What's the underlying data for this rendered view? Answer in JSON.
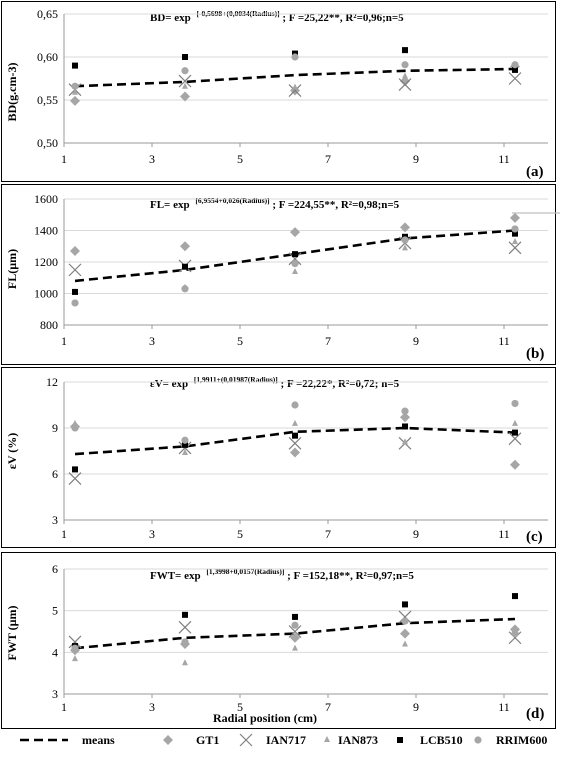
{
  "legend": {
    "means": "means",
    "gt1": "GT1",
    "ian717": "IAN717",
    "ian873": "IAN873",
    "lcb510": "LCB510",
    "rrim600": "RRIM600"
  },
  "x_axis_title": "Radial position (cm)",
  "colors": {
    "GT1": "#a6a6a6",
    "IAN717": "#7f7f7f",
    "IAN873": "#a6a6a6",
    "LCB510": "#000000",
    "RRIM600": "#a6a6a6"
  },
  "chart_data": [
    {
      "type": "scatter",
      "panel_label": "(a)",
      "ylabel": "BD(g.cm-3)",
      "equation": {
        "prefix": "BD= exp",
        "exponent": "[-0,5698+(0,0034(Radius)]",
        "suffix": "; F =25,22**, R²=0,96;n=5"
      },
      "xlim": [
        1,
        12
      ],
      "x_ticks": [
        1,
        3,
        5,
        7,
        9,
        11
      ],
      "ylim": [
        0.5,
        0.65
      ],
      "y_ticks": [
        "0,50",
        "0,55",
        "0,60",
        "0,65"
      ],
      "grid": true,
      "series": [
        {
          "name": "means",
          "x": [
            1.25,
            3.75,
            6.25,
            8.75,
            11.25
          ],
          "values": [
            0.566,
            0.571,
            0.579,
            0.584,
            0.586
          ]
        },
        {
          "name": "GT1",
          "x": [
            1.25,
            3.75,
            6.25,
            8.75,
            11.25
          ],
          "values": [
            0.549,
            0.554,
            0.561,
            0.572,
            0.589
          ]
        },
        {
          "name": "IAN717",
          "x": [
            1.25,
            3.75,
            6.25,
            8.75,
            11.25
          ],
          "values": [
            0.562,
            0.572,
            0.561,
            0.568,
            0.575
          ]
        },
        {
          "name": "IAN873",
          "x": [
            1.25,
            3.75,
            6.25,
            8.75,
            11.25
          ],
          "values": [
            0.559,
            0.566,
            0.565,
            0.578,
            0.585
          ]
        },
        {
          "name": "LCB510",
          "x": [
            1.25,
            3.75,
            6.25,
            8.75,
            11.25
          ],
          "values": [
            0.59,
            0.6,
            0.604,
            0.608,
            0.585
          ]
        },
        {
          "name": "RRIM600",
          "x": [
            1.25,
            3.75,
            6.25,
            8.75,
            11.25
          ],
          "values": [
            0.566,
            0.584,
            0.6,
            0.591,
            0.591
          ]
        }
      ]
    },
    {
      "type": "scatter",
      "panel_label": "(b)",
      "ylabel": "FL(µm)",
      "equation": {
        "prefix": "FL= exp",
        "exponent": "[6,9554+0,026(Radius)]",
        "suffix": "; F =224,55**, R²=0,98;n=5"
      },
      "xlim": [
        1,
        12
      ],
      "x_ticks": [
        1,
        3,
        5,
        7,
        9,
        11
      ],
      "ylim": [
        800,
        1600
      ],
      "y_ticks": [
        "800",
        "1000",
        "1200",
        "1400",
        "1600"
      ],
      "grid": true,
      "series": [
        {
          "name": "means",
          "x": [
            1.25,
            3.75,
            6.25,
            8.75,
            11.25
          ],
          "values": [
            1080,
            1150,
            1250,
            1350,
            1400
          ]
        },
        {
          "name": "GT1",
          "x": [
            1.25,
            3.75,
            6.25,
            8.75,
            11.25
          ],
          "values": [
            1270,
            1300,
            1390,
            1420,
            1480
          ]
        },
        {
          "name": "IAN717",
          "x": [
            1.25,
            3.75,
            6.25,
            8.75,
            11.25
          ],
          "values": [
            1150,
            1175,
            1220,
            1320,
            1290
          ]
        },
        {
          "name": "IAN873",
          "x": [
            1.25,
            3.75,
            6.25,
            8.75,
            11.25
          ],
          "values": [
            1010,
            1040,
            1140,
            1290,
            1330
          ]
        },
        {
          "name": "LCB510",
          "x": [
            1.25,
            3.75,
            6.25,
            8.75,
            11.25
          ],
          "values": [
            1010,
            1170,
            1250,
            1360,
            1380
          ]
        },
        {
          "name": "RRIM600",
          "x": [
            1.25,
            3.75,
            6.25,
            8.75,
            11.25
          ],
          "values": [
            940,
            1030,
            1190,
            1340,
            1410
          ]
        }
      ]
    },
    {
      "type": "scatter",
      "panel_label": "(c)",
      "ylabel": "εV (%)",
      "equation": {
        "prefix": "εV= exp",
        "exponent": "[1,9911+(0,01987(Radius)]",
        "suffix": "; F =22,22*, R²=0,72;  n=5"
      },
      "xlim": [
        1,
        12
      ],
      "x_ticks": [
        1,
        3,
        5,
        7,
        9,
        11
      ],
      "ylim": [
        3,
        12
      ],
      "y_ticks": [
        "3",
        "6",
        "9",
        "12"
      ],
      "grid": true,
      "series": [
        {
          "name": "means",
          "x": [
            1.25,
            3.75,
            6.25,
            8.75,
            11.25
          ],
          "values": [
            7.3,
            7.8,
            8.75,
            9.0,
            8.7
          ]
        },
        {
          "name": "GT1",
          "x": [
            1.25,
            3.75,
            6.25,
            8.75,
            11.25
          ],
          "values": [
            9.1,
            7.9,
            7.4,
            9.7,
            6.6
          ]
        },
        {
          "name": "IAN717",
          "x": [
            1.25,
            3.75,
            6.25,
            8.75,
            11.25
          ],
          "values": [
            5.7,
            7.7,
            8.0,
            8.0,
            8.3
          ]
        },
        {
          "name": "IAN873",
          "x": [
            1.25,
            3.75,
            6.25,
            8.75,
            11.25
          ],
          "values": [
            9.3,
            7.4,
            9.3,
            8.1,
            9.3
          ]
        },
        {
          "name": "LCB510",
          "x": [
            1.25,
            3.75,
            6.25,
            8.75,
            11.25
          ],
          "values": [
            6.3,
            7.9,
            8.5,
            9.1,
            8.7
          ]
        },
        {
          "name": "RRIM600",
          "x": [
            1.25,
            3.75,
            6.25,
            8.75,
            11.25
          ],
          "values": [
            9.0,
            8.2,
            10.5,
            10.1,
            10.6
          ]
        }
      ]
    },
    {
      "type": "scatter",
      "panel_label": "(d)",
      "ylabel": "FWT (µm)",
      "equation": {
        "prefix": "FWT= exp",
        "exponent": "[1,3998+0,0157(Radius)]",
        "suffix": "; F =152,18**, R²=0,97;n=5"
      },
      "xlim": [
        1,
        12
      ],
      "x_ticks": [
        1,
        3,
        5,
        7,
        9,
        11
      ],
      "ylim": [
        3,
        6
      ],
      "y_ticks": [
        "3",
        "4",
        "5",
        "6"
      ],
      "grid": true,
      "series": [
        {
          "name": "means",
          "x": [
            1.25,
            3.75,
            6.25,
            8.75,
            11.25
          ],
          "values": [
            4.1,
            4.35,
            4.45,
            4.7,
            4.8
          ]
        },
        {
          "name": "GT1",
          "x": [
            1.25,
            3.75,
            6.25,
            8.75,
            11.25
          ],
          "values": [
            4.05,
            4.2,
            4.35,
            4.45,
            4.55
          ]
        },
        {
          "name": "IAN717",
          "x": [
            1.25,
            3.75,
            6.25,
            8.75,
            11.25
          ],
          "values": [
            4.25,
            4.6,
            4.5,
            4.85,
            4.35
          ]
        },
        {
          "name": "IAN873",
          "x": [
            1.25,
            3.75,
            6.25,
            8.75,
            11.25
          ],
          "values": [
            3.85,
            3.75,
            4.1,
            4.2,
            4.5
          ]
        },
        {
          "name": "LCB510",
          "x": [
            1.25,
            3.75,
            6.25,
            8.75,
            11.25
          ],
          "values": [
            4.15,
            4.9,
            4.85,
            5.15,
            5.35
          ]
        },
        {
          "name": "RRIM600",
          "x": [
            1.25,
            3.75,
            6.25,
            8.75,
            11.25
          ],
          "values": [
            4.1,
            4.25,
            4.65,
            4.75,
            4.45
          ]
        }
      ]
    }
  ]
}
